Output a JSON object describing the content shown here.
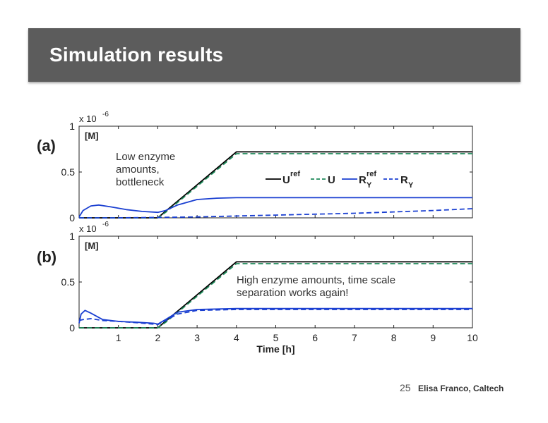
{
  "slide": {
    "title": "Simulation results",
    "page_number": "25",
    "author": "Elisa Franco, Caltech"
  },
  "chart_data": [
    {
      "type": "line",
      "panel_label": "(a)",
      "unit_label": "[M]",
      "y_exponent": "x 10",
      "y_exponent_power": "-6",
      "annotation": [
        "Low enzyme",
        "amounts,",
        "bottleneck"
      ],
      "xlim": [
        0,
        10
      ],
      "ylim": [
        0,
        1
      ],
      "yticks": [
        "0",
        "0.5",
        "1"
      ],
      "legend": {
        "placement": "center-right",
        "entries": [
          {
            "label": "U",
            "sup": "ref",
            "sub": "",
            "color": "#000000",
            "dash": "solid"
          },
          {
            "label": "U",
            "sup": "",
            "sub": "",
            "color": "#1e8a5a",
            "dash": "dashed"
          },
          {
            "label": "R",
            "sup": "ref",
            "sub": "Y",
            "color": "#1a3fd1",
            "dash": "solid"
          },
          {
            "label": "R",
            "sup": "",
            "sub": "Y",
            "color": "#1a3fd1",
            "dash": "dashed"
          }
        ]
      },
      "series": [
        {
          "color": "#000000",
          "dash": "solid",
          "x": [
            0,
            2,
            4,
            10
          ],
          "y": [
            0,
            0,
            0.72,
            0.72
          ]
        },
        {
          "color": "#1e8a5a",
          "dash": "dashed",
          "x": [
            0,
            2,
            2.2,
            4,
            10
          ],
          "y": [
            0,
            0,
            0.06,
            0.7,
            0.7
          ]
        },
        {
          "color": "#1a3fd1",
          "dash": "solid",
          "x": [
            0,
            0.1,
            0.3,
            0.5,
            0.8,
            1.2,
            1.6,
            2.0,
            2.2,
            2.5,
            3.0,
            3.5,
            4.0,
            5.0,
            10.0
          ],
          "y": [
            0.01,
            0.08,
            0.13,
            0.14,
            0.12,
            0.09,
            0.07,
            0.06,
            0.08,
            0.14,
            0.2,
            0.215,
            0.22,
            0.22,
            0.22
          ]
        },
        {
          "color": "#1a3fd1",
          "dash": "dashed",
          "x": [
            0,
            1,
            2,
            3,
            4,
            5,
            6,
            7,
            8,
            9,
            10
          ],
          "y": [
            0.0,
            0.0,
            0.005,
            0.01,
            0.02,
            0.03,
            0.04,
            0.05,
            0.065,
            0.08,
            0.1
          ]
        }
      ]
    },
    {
      "type": "line",
      "panel_label": "(b)",
      "unit_label": "[M]",
      "y_exponent": "x 10",
      "y_exponent_power": "-6",
      "annotation": [
        "High enzyme amounts, time scale",
        "separation works again!"
      ],
      "xlim": [
        0,
        10
      ],
      "ylim": [
        0,
        1
      ],
      "yticks": [
        "0",
        "0.5",
        "1"
      ],
      "xticks": [
        "1",
        "2",
        "3",
        "4",
        "5",
        "6",
        "7",
        "8",
        "9",
        "10"
      ],
      "xlabel": "Time [h]",
      "series": [
        {
          "color": "#000000",
          "dash": "solid",
          "x": [
            0,
            2,
            4,
            10
          ],
          "y": [
            0,
            0,
            0.72,
            0.72
          ]
        },
        {
          "color": "#1e8a5a",
          "dash": "dashed",
          "x": [
            0,
            2,
            2.2,
            4,
            10
          ],
          "y": [
            0,
            0,
            0.06,
            0.7,
            0.7
          ]
        },
        {
          "color": "#1a3fd1",
          "dash": "solid",
          "x": [
            0,
            0.05,
            0.15,
            0.3,
            0.6,
            1.0,
            1.5,
            1.9,
            2.0,
            2.2,
            2.5,
            3.0,
            4.0,
            10.0
          ],
          "y": [
            0.05,
            0.15,
            0.19,
            0.16,
            0.09,
            0.07,
            0.06,
            0.05,
            0.04,
            0.09,
            0.17,
            0.2,
            0.21,
            0.21
          ]
        },
        {
          "color": "#1a3fd1",
          "dash": "dashed",
          "x": [
            0,
            0.1,
            0.3,
            0.6,
            1.0,
            1.5,
            1.9,
            2.0,
            2.2,
            2.5,
            3.0,
            4.0,
            10.0
          ],
          "y": [
            0.08,
            0.09,
            0.1,
            0.08,
            0.07,
            0.055,
            0.04,
            0.035,
            0.08,
            0.15,
            0.19,
            0.2,
            0.2
          ]
        }
      ]
    }
  ]
}
